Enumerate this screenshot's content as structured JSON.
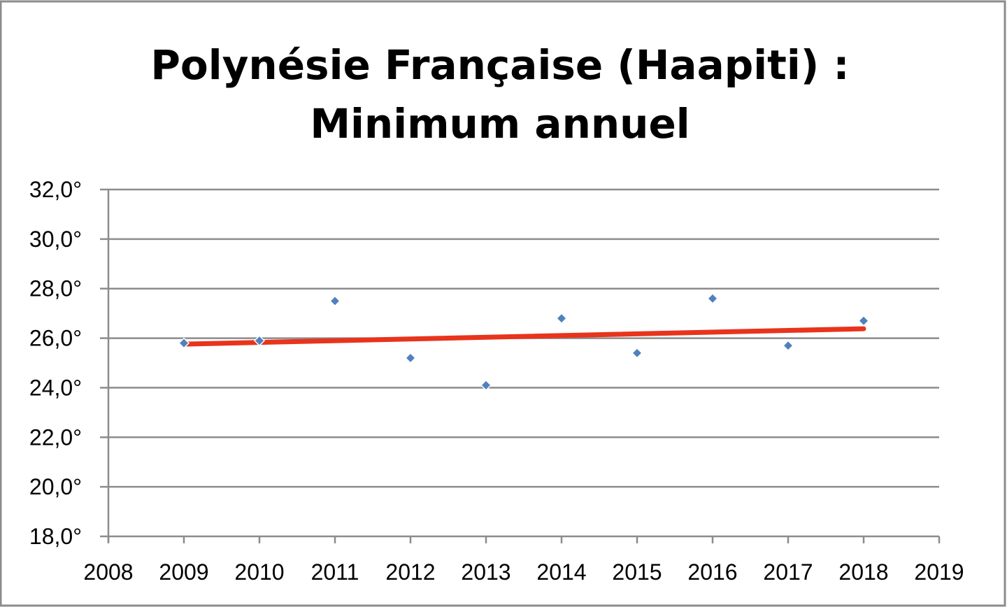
{
  "chart_data": {
    "type": "scatter",
    "title": "Polynésie Française (Haapiti) : Minimum annuel",
    "title_lines": [
      "Polynésie Française (Haapiti) :",
      "Minimum annuel"
    ],
    "xlabel": "",
    "ylabel": "",
    "xlim": [
      2008,
      2019
    ],
    "ylim": [
      18,
      32
    ],
    "x_ticks": [
      "2008",
      "2009",
      "2010",
      "2011",
      "2012",
      "2013",
      "2014",
      "2015",
      "2016",
      "2017",
      "2018",
      "2019"
    ],
    "y_ticks": [
      "18,0°",
      "20,0°",
      "22,0°",
      "24,0°",
      "26,0°",
      "28,0°",
      "30,0°",
      "32,0°"
    ],
    "grid": "horizontal",
    "legend": "none",
    "series": [
      {
        "x": [
          2009,
          2010,
          2011,
          2012,
          2013,
          2014,
          2015,
          2016,
          2017,
          2018
        ],
        "y": [
          25.8,
          25.9,
          27.5,
          25.2,
          24.1,
          26.8,
          25.4,
          27.6,
          25.7,
          26.7
        ],
        "color": "#4f81bd",
        "marker": "diamond"
      }
    ],
    "trendline": {
      "type": "linear",
      "x": [
        2009,
        2018
      ],
      "y": [
        25.76,
        26.38
      ],
      "color": "#e8341c"
    }
  }
}
